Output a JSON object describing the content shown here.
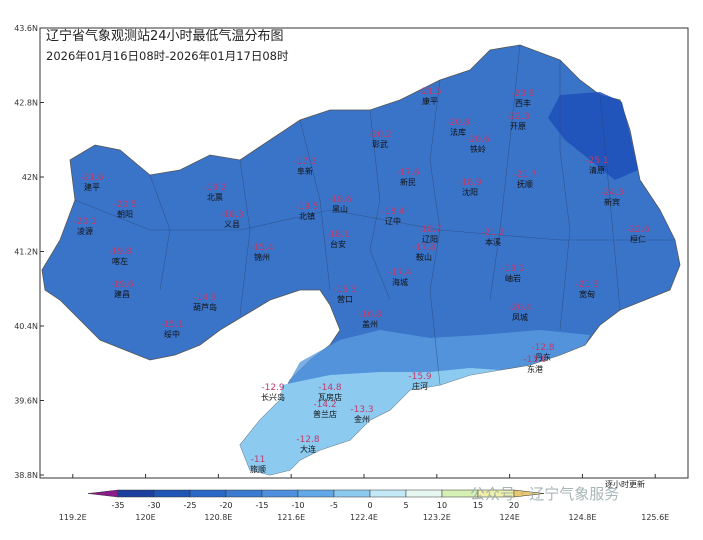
{
  "header": {
    "title": "辽宁省气象观测站24小时最低气温分布图",
    "subtitle": "2026年01月16日08时-2026年01月17日08时"
  },
  "map": {
    "latlim": [
      38.8,
      43.6
    ],
    "lonlim": [
      118.84,
      125.96
    ],
    "lat_ticks": [
      {
        "value": 43.6,
        "label": "43.6N"
      },
      {
        "value": 42.8,
        "label": "42.8N"
      },
      {
        "value": 42,
        "label": "42N"
      },
      {
        "value": 41.2,
        "label": "41.2N"
      },
      {
        "value": 40.4,
        "label": "40.4N"
      },
      {
        "value": 39.6,
        "label": "39.6N"
      },
      {
        "value": 38.8,
        "label": "38.8N"
      }
    ],
    "lon_ticks": [
      {
        "value": 119.2,
        "label": "119.2E"
      },
      {
        "value": 120,
        "label": "120E"
      },
      {
        "value": 120.8,
        "label": "120.8E"
      },
      {
        "value": 121.6,
        "label": "121.6E"
      },
      {
        "value": 122.4,
        "label": "122.4E"
      },
      {
        "value": 123.2,
        "label": "123.2E"
      },
      {
        "value": 124,
        "label": "124E"
      },
      {
        "value": 124.8,
        "label": "124.8E"
      },
      {
        "value": 125.6,
        "label": "125.6E"
      }
    ],
    "stations": [
      {
        "name": "建平",
        "value": -21.6
      },
      {
        "name": "朝阳",
        "value": -20.5
      },
      {
        "name": "北票",
        "value": -19.2
      },
      {
        "name": "凌源",
        "value": -20.1
      },
      {
        "name": "喀左",
        "value": -19.8
      },
      {
        "name": "建昌",
        "value": -19.6
      },
      {
        "name": "葫芦岛",
        "value": -14.9
      },
      {
        "name": "绥中",
        "value": -15.1
      },
      {
        "name": "义县",
        "value": -18.3
      },
      {
        "name": "北镇",
        "value": -19.5
      },
      {
        "name": "锦州",
        "value": -15.4
      },
      {
        "name": "阜新",
        "value": -17.3
      },
      {
        "name": "彰武",
        "value": -20.2
      },
      {
        "name": "黑山",
        "value": -18.6
      },
      {
        "name": "台安",
        "value": -18.1
      },
      {
        "name": "新民",
        "value": -17.6
      },
      {
        "name": "辽中",
        "value": -18.4
      },
      {
        "name": "法库",
        "value": -20.8
      },
      {
        "name": "康平",
        "value": -21.5
      },
      {
        "name": "铁岭",
        "value": -20.6
      },
      {
        "name": "开原",
        "value": -22.3
      },
      {
        "name": "西丰",
        "value": -23.9
      },
      {
        "name": "清原",
        "value": -25.1
      },
      {
        "name": "新宾",
        "value": -24.3
      },
      {
        "name": "抚顺",
        "value": -21.7
      },
      {
        "name": "沈阳",
        "value": -18.9
      },
      {
        "name": "本溪",
        "value": -21.2
      },
      {
        "name": "桓仁",
        "value": -22.6
      },
      {
        "name": "辽阳",
        "value": -18.7
      },
      {
        "name": "鞍山",
        "value": -17.8
      },
      {
        "name": "海城",
        "value": -17.4
      },
      {
        "name": "营口",
        "value": -16.3
      },
      {
        "name": "盖州",
        "value": -16.8
      },
      {
        "name": "岫岩",
        "value": -19.1
      },
      {
        "name": "凤城",
        "value": -20.4
      },
      {
        "name": "宽甸",
        "value": -21.3
      },
      {
        "name": "丹东",
        "value": -12.8
      },
      {
        "name": "东港",
        "value": -13.6
      },
      {
        "name": "庄河",
        "value": -15.9
      },
      {
        "name": "瓦房店",
        "value": -14.8
      },
      {
        "name": "普兰店",
        "value": -14.2
      },
      {
        "name": "金州",
        "value": -13.3
      },
      {
        "name": "大连",
        "value": -12.8
      },
      {
        "name": "旅顺",
        "value": -11.0
      },
      {
        "name": "长兴岛",
        "value": -12.9
      }
    ]
  },
  "legend": {
    "levels": [
      -35,
      -30,
      -25,
      -20,
      -15,
      -10,
      -5,
      0,
      5,
      10,
      15,
      20
    ],
    "colors": [
      "#8b1a8b",
      "#1b3f9e",
      "#1f55b5",
      "#2a68c6",
      "#3a7ad0",
      "#4d8fdc",
      "#63a8e6",
      "#8ccaf0",
      "#c3e8f6",
      "#e6f7f2",
      "#d6f0b4",
      "#f0f0a8",
      "#e8c870"
    ]
  },
  "watermark": "公众号 · 辽宁气象服务",
  "note": "逐小时更新"
}
